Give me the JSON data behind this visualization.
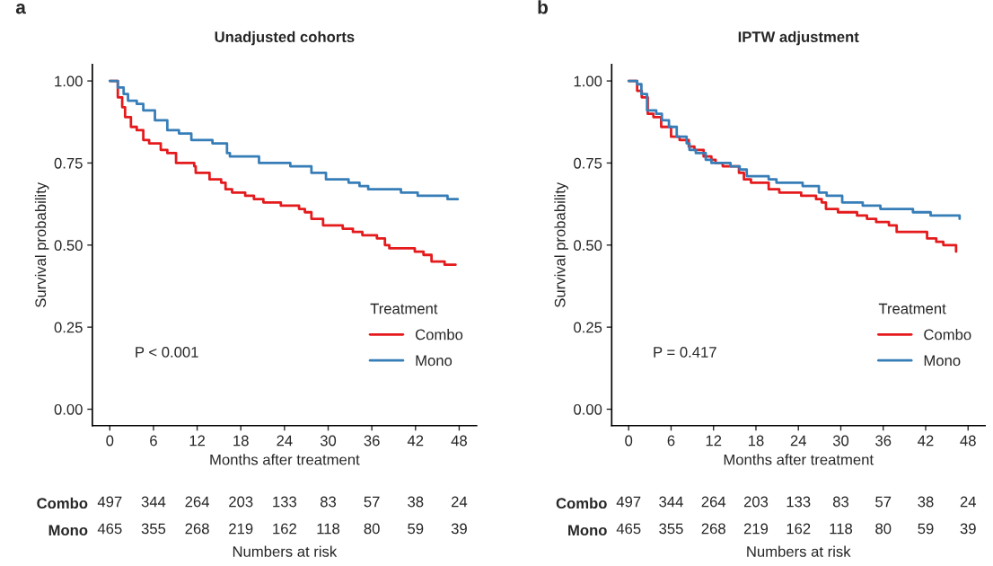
{
  "chart_data": [
    {
      "type": "step",
      "title": "Unadjusted cohorts",
      "xlabel": "Months after treatment",
      "ylabel": "Survival probability",
      "legend_title": "Treatment",
      "legend": "bottom right",
      "xlim": [
        -2.4,
        50.4
      ],
      "xticks": [
        0,
        6,
        12,
        18,
        24,
        30,
        36,
        42,
        48
      ],
      "ylim": [
        -0.05,
        1.05
      ],
      "yticks": [
        {
          "value": 0,
          "label": "0.00"
        },
        {
          "value": 0.25,
          "label": "0.25"
        },
        {
          "value": 0.5,
          "label": "0.50"
        },
        {
          "value": 0.75,
          "label": "0.75"
        },
        {
          "value": 1,
          "label": "1.00"
        }
      ],
      "annotations": [
        "a",
        "P < 0.001"
      ],
      "series": [
        {
          "name": "Combo",
          "color": "#e41a1c",
          "x": [
            0,
            1.1,
            1.7,
            2.1,
            2.9,
            3.7,
            4.6,
            5.4,
            7.0,
            7.9,
            9.1,
            10.4,
            11.6,
            11.8,
            13.7,
            15.3,
            15.9,
            16.8,
            18.6,
            19.8,
            21.1,
            23.5,
            26.0,
            26.8,
            27.7,
            29.3,
            32.0,
            33.4,
            34.7,
            36.7,
            37.8,
            38.4,
            41.9,
            43.1,
            44.2,
            46.0,
            47.5
          ],
          "values": [
            1.0,
            0.95,
            0.92,
            0.89,
            0.86,
            0.85,
            0.82,
            0.81,
            0.79,
            0.78,
            0.75,
            0.75,
            0.74,
            0.72,
            0.7,
            0.69,
            0.67,
            0.66,
            0.65,
            0.64,
            0.63,
            0.62,
            0.61,
            0.6,
            0.58,
            0.56,
            0.55,
            0.54,
            0.53,
            0.52,
            0.5,
            0.49,
            0.48,
            0.47,
            0.45,
            0.44,
            0.44
          ]
        },
        {
          "name": "Mono",
          "color": "#377eb8",
          "x": [
            0,
            1.1,
            1.9,
            2.5,
            3.7,
            4.6,
            6.2,
            7.9,
            9.5,
            11.2,
            14.1,
            16.1,
            16.5,
            20.5,
            24.8,
            27.7,
            29.7,
            32.8,
            34.3,
            35.5,
            40.0,
            42.3,
            46.4,
            47.8
          ],
          "values": [
            1.0,
            0.98,
            0.96,
            0.94,
            0.93,
            0.91,
            0.88,
            0.85,
            0.84,
            0.82,
            0.81,
            0.78,
            0.77,
            0.75,
            0.74,
            0.72,
            0.7,
            0.69,
            0.68,
            0.67,
            0.66,
            0.65,
            0.64,
            0.64
          ]
        }
      ]
    },
    {
      "type": "other",
      "xlabel": "Numbers at risk",
      "categories": [
        "Combo",
        "Mono"
      ],
      "annotations": [
        "497",
        "344",
        "264",
        "203",
        "133",
        "83",
        "57",
        "38",
        "24",
        "465",
        "355",
        "268",
        "219",
        "162",
        "118",
        "80",
        "59",
        "39"
      ]
    },
    {
      "type": "step",
      "title": "IPTW adjustment",
      "xlabel": "Months after treatment",
      "ylabel": "Survival probability",
      "legend_title": "Treatment",
      "legend": "bottom right",
      "xlim": [
        -2.4,
        50.4
      ],
      "xticks": [
        0,
        6,
        12,
        18,
        24,
        30,
        36,
        42,
        48
      ],
      "ylim": [
        -0.05,
        1.05
      ],
      "yticks": [
        {
          "value": 0,
          "label": "0.00"
        },
        {
          "value": 0.25,
          "label": "0.25"
        },
        {
          "value": 0.5,
          "label": "0.50"
        },
        {
          "value": 0.75,
          "label": "0.75"
        },
        {
          "value": 1,
          "label": "1.00"
        }
      ],
      "annotations": [
        "b",
        "P = 0.417"
      ],
      "series": [
        {
          "name": "Combo",
          "color": "#e41a1c",
          "x": [
            0,
            1.2,
            1.85,
            2.7,
            3.5,
            4.6,
            6.0,
            7.2,
            8.5,
            9.3,
            10.6,
            11.7,
            12.3,
            13.3,
            15.6,
            16.3,
            17.3,
            19.8,
            21.3,
            24.4,
            26.5,
            27.3,
            27.9,
            29.6,
            32.3,
            33.7,
            35.0,
            36.8,
            37.9,
            42.2,
            43.5,
            44.5,
            46.3
          ],
          "values": [
            1.0,
            0.97,
            0.95,
            0.9,
            0.89,
            0.86,
            0.83,
            0.82,
            0.8,
            0.79,
            0.77,
            0.76,
            0.75,
            0.74,
            0.72,
            0.7,
            0.69,
            0.67,
            0.66,
            0.65,
            0.64,
            0.63,
            0.61,
            0.6,
            0.59,
            0.58,
            0.57,
            0.56,
            0.54,
            0.52,
            0.51,
            0.5,
            0.48
          ]
        },
        {
          "name": "Mono",
          "color": "#377eb8",
          "x": [
            0,
            1.2,
            1.8,
            2.6,
            3.9,
            4.7,
            5.7,
            6.8,
            8.2,
            8.6,
            9.5,
            10.9,
            11.7,
            14.4,
            15.7,
            16.7,
            19.8,
            20.9,
            24.6,
            26.9,
            28.0,
            30.2,
            33.1,
            35.6,
            40.2,
            42.7,
            46.8
          ],
          "values": [
            1.0,
            0.99,
            0.96,
            0.91,
            0.9,
            0.88,
            0.86,
            0.83,
            0.81,
            0.79,
            0.78,
            0.76,
            0.75,
            0.74,
            0.73,
            0.71,
            0.7,
            0.69,
            0.68,
            0.66,
            0.65,
            0.63,
            0.62,
            0.61,
            0.6,
            0.59,
            0.58
          ]
        }
      ]
    },
    {
      "type": "other",
      "xlabel": "Numbers at risk",
      "categories": [
        "Combo",
        "Mono"
      ],
      "annotations": [
        "497",
        "344",
        "264",
        "203",
        "133",
        "83",
        "57",
        "38",
        "24",
        "465",
        "355",
        "268",
        "219",
        "162",
        "118",
        "80",
        "59",
        "39"
      ]
    }
  ]
}
